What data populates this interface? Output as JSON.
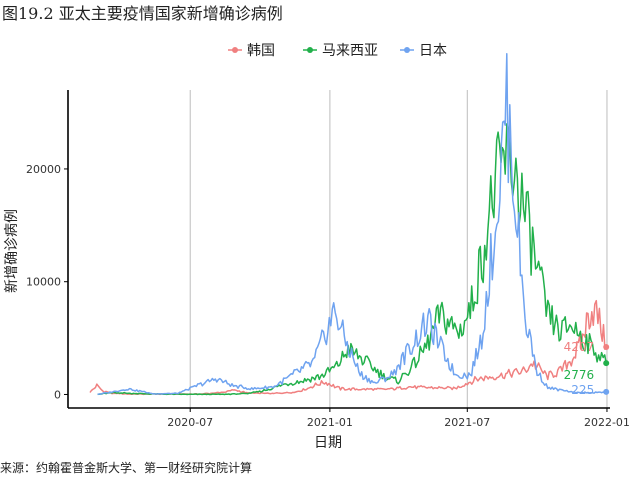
{
  "figure_title": "图19.2 亚太主要疫情国家新增确诊病例",
  "source": "来源：约翰霍普金斯大学、第一财经研究院计算",
  "colors": {
    "korea": "#F08080",
    "malaysia": "#22B04B",
    "japan": "#6FA3F0",
    "grid": "#bdbdbd",
    "axis": "#000000"
  },
  "chart_data": {
    "type": "line",
    "xlabel": "日期",
    "ylabel": "新增确诊病例",
    "x_ticks": [
      "2020-07",
      "2021-01",
      "2021-07",
      "2022-01"
    ],
    "y_ticks": [
      0,
      10000,
      20000
    ],
    "xlim": [
      "2020-01-22",
      "2022-01-05"
    ],
    "ylim": [
      -1200,
      27000
    ],
    "legend_position": "top",
    "grid": "vertical major",
    "series": [
      {
        "name": "韩国",
        "key": "korea",
        "end_label": "4207",
        "points": [
          [
            "2020-02-20",
            200
          ],
          [
            "2020-02-29",
            800
          ],
          [
            "2020-03-08",
            300
          ],
          [
            "2020-03-20",
            100
          ],
          [
            "2020-04-15",
            30
          ],
          [
            "2020-06-01",
            40
          ],
          [
            "2020-07-15",
            40
          ],
          [
            "2020-08-15",
            200
          ],
          [
            "2020-08-27",
            400
          ],
          [
            "2020-09-15",
            120
          ],
          [
            "2020-10-15",
            90
          ],
          [
            "2020-11-15",
            200
          ],
          [
            "2020-12-01",
            500
          ],
          [
            "2020-12-15",
            900
          ],
          [
            "2020-12-25",
            1100
          ],
          [
            "2021-01-15",
            500
          ],
          [
            "2021-02-15",
            450
          ],
          [
            "2021-03-15",
            450
          ],
          [
            "2021-04-15",
            650
          ],
          [
            "2021-05-15",
            600
          ],
          [
            "2021-06-15",
            550
          ],
          [
            "2021-07-15",
            1400
          ],
          [
            "2021-08-15",
            1700
          ],
          [
            "2021-09-15",
            2100
          ],
          [
            "2021-09-25",
            2800
          ],
          [
            "2021-10-15",
            1600
          ],
          [
            "2021-11-01",
            2100
          ],
          [
            "2021-11-15",
            3100
          ],
          [
            "2021-11-28",
            4500
          ],
          [
            "2021-12-07",
            6800
          ],
          [
            "2021-12-12",
            7500
          ],
          [
            "2021-12-18",
            7300
          ],
          [
            "2021-12-24",
            6000
          ],
          [
            "2021-12-31",
            4207
          ]
        ]
      },
      {
        "name": "马来西亚",
        "key": "malaysia",
        "end_label": "2776",
        "points": [
          [
            "2020-03-01",
            10
          ],
          [
            "2020-03-20",
            150
          ],
          [
            "2020-04-15",
            100
          ],
          [
            "2020-05-15",
            40
          ],
          [
            "2020-07-01",
            10
          ],
          [
            "2020-08-15",
            15
          ],
          [
            "2020-09-15",
            80
          ],
          [
            "2020-10-10",
            400
          ],
          [
            "2020-11-01",
            900
          ],
          [
            "2020-11-25",
            1200
          ],
          [
            "2020-12-20",
            1600
          ],
          [
            "2021-01-10",
            2500
          ],
          [
            "2021-01-25",
            4000
          ],
          [
            "2021-02-05",
            3500
          ],
          [
            "2021-02-25",
            2500
          ],
          [
            "2021-03-15",
            1500
          ],
          [
            "2021-04-01",
            1200
          ],
          [
            "2021-04-20",
            2500
          ],
          [
            "2021-05-10",
            4500
          ],
          [
            "2021-05-25",
            7000
          ],
          [
            "2021-06-05",
            6500
          ],
          [
            "2021-06-20",
            5500
          ],
          [
            "2021-07-05",
            7500
          ],
          [
            "2021-07-20",
            12000
          ],
          [
            "2021-08-05",
            18000
          ],
          [
            "2021-08-20",
            21000
          ],
          [
            "2021-09-01",
            20000
          ],
          [
            "2021-09-15",
            16000
          ],
          [
            "2021-10-01",
            11000
          ],
          [
            "2021-10-15",
            7000
          ],
          [
            "2021-11-01",
            5500
          ],
          [
            "2021-11-15",
            6200
          ],
          [
            "2021-12-01",
            5000
          ],
          [
            "2021-12-15",
            4000
          ],
          [
            "2021-12-31",
            2776
          ]
        ]
      },
      {
        "name": "日本",
        "key": "japan",
        "end_label": "225",
        "points": [
          [
            "2020-03-01",
            10
          ],
          [
            "2020-04-10",
            500
          ],
          [
            "2020-05-15",
            50
          ],
          [
            "2020-06-15",
            100
          ],
          [
            "2020-07-15",
            900
          ],
          [
            "2020-08-05",
            1400
          ],
          [
            "2020-08-25",
            800
          ],
          [
            "2020-09-20",
            500
          ],
          [
            "2020-10-20",
            700
          ],
          [
            "2020-11-15",
            1800
          ],
          [
            "2020-12-10",
            2800
          ],
          [
            "2021-01-08",
            7500
          ],
          [
            "2021-01-20",
            5000
          ],
          [
            "2021-02-10",
            1800
          ],
          [
            "2021-03-01",
            1000
          ],
          [
            "2021-03-25",
            1800
          ],
          [
            "2021-04-15",
            4000
          ],
          [
            "2021-05-10",
            6500
          ],
          [
            "2021-05-25",
            4500
          ],
          [
            "2021-06-15",
            1800
          ],
          [
            "2021-07-05",
            1700
          ],
          [
            "2021-07-20",
            5000
          ],
          [
            "2021-08-05",
            14000
          ],
          [
            "2021-08-15",
            20000
          ],
          [
            "2021-08-20",
            25800
          ],
          [
            "2021-08-28",
            22000
          ],
          [
            "2021-09-05",
            15000
          ],
          [
            "2021-09-15",
            7000
          ],
          [
            "2021-10-01",
            2000
          ],
          [
            "2021-10-15",
            600
          ],
          [
            "2021-11-15",
            200
          ],
          [
            "2021-12-15",
            150
          ],
          [
            "2021-12-31",
            225
          ]
        ]
      }
    ]
  }
}
